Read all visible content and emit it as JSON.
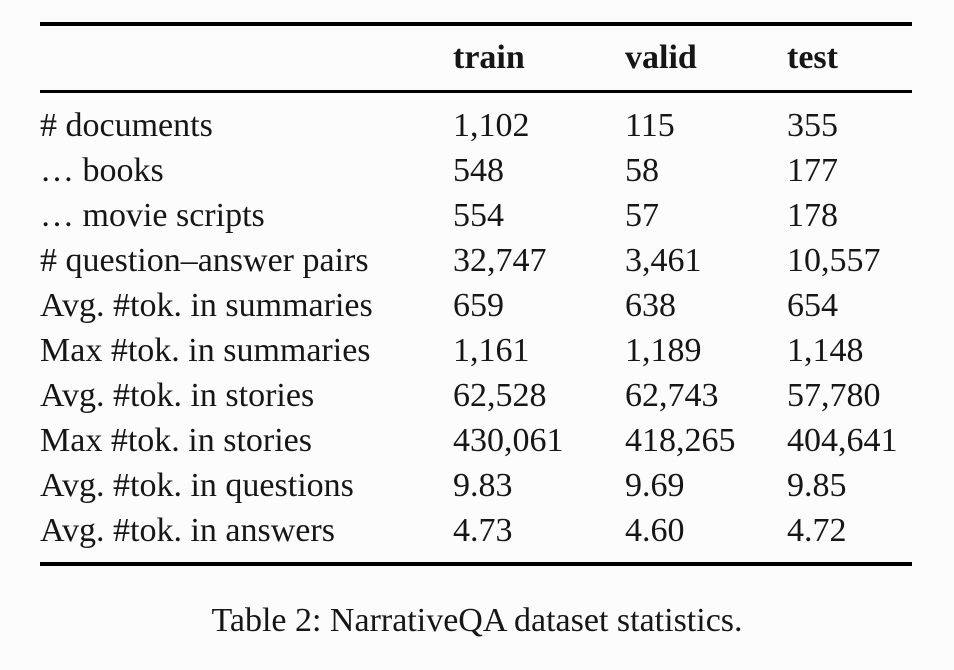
{
  "table": {
    "header": [
      "train",
      "valid",
      "test"
    ],
    "rows": [
      {
        "label": "# documents",
        "train": "1,102",
        "valid": "115",
        "test": "355"
      },
      {
        "label": "… books",
        "train": "548",
        "valid": "58",
        "test": "177"
      },
      {
        "label": "… movie scripts",
        "train": "554",
        "valid": "57",
        "test": "178"
      },
      {
        "label": "# question–answer pairs",
        "train": "32,747",
        "valid": "3,461",
        "test": "10,557"
      },
      {
        "label": "Avg. #tok. in summaries",
        "train": "659",
        "valid": "638",
        "test": "654"
      },
      {
        "label": "Max #tok. in summaries",
        "train": "1,161",
        "valid": "1,189",
        "test": "1,148"
      },
      {
        "label": "Avg. #tok. in stories",
        "train": "62,528",
        "valid": "62,743",
        "test": "57,780"
      },
      {
        "label": "Max #tok. in stories",
        "train": "430,061",
        "valid": "418,265",
        "test": "404,641"
      },
      {
        "label": "Avg. #tok. in questions",
        "train": "9.83",
        "valid": "9.69",
        "test": "9.85"
      },
      {
        "label": "Avg. #tok. in answers",
        "train": "4.73",
        "valid": "4.60",
        "test": "4.72"
      }
    ]
  },
  "caption": "Table 2: NarrativeQA dataset statistics.",
  "colors": {
    "text": "#161616",
    "rule": "#000000",
    "background": "#fcfcfc"
  }
}
